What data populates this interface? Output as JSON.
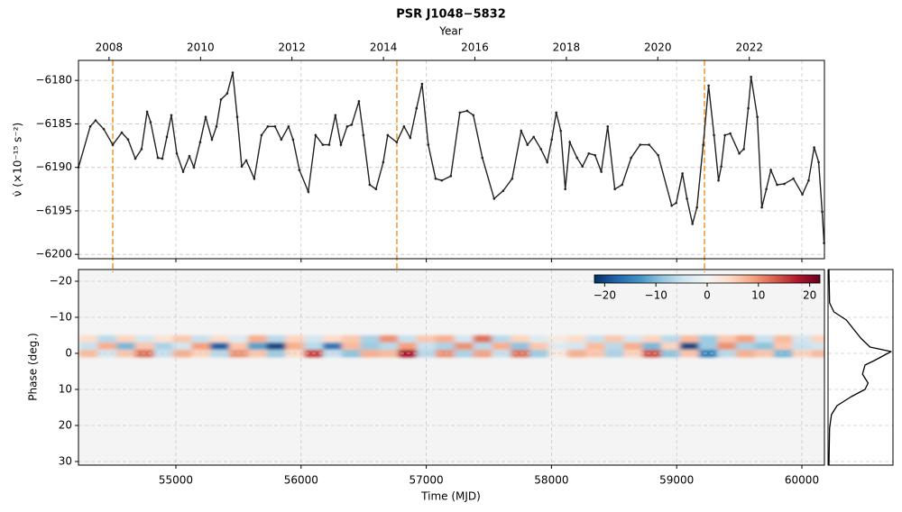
{
  "chart_data": [
    {
      "type": "line",
      "title": "PSR J1048−5832",
      "x2label": "Year",
      "ylabel": "ν̇ (×10⁻¹⁵ s⁻²)",
      "color": "#222222",
      "xlim": [
        54222,
        60180
      ],
      "ylim": [
        -6200.5,
        -6177.7
      ],
      "yticks": [
        {
          "value": -6180,
          "label": "−6180"
        },
        {
          "value": -6185,
          "label": "−6185"
        },
        {
          "value": -6190,
          "label": "−6190"
        },
        {
          "value": -6195,
          "label": "−6195"
        },
        {
          "value": -6200,
          "label": "−6200"
        }
      ],
      "x2ticks": [
        {
          "value": 54466,
          "label": "2008"
        },
        {
          "value": 55197,
          "label": "2010"
        },
        {
          "value": 55927,
          "label": "2012"
        },
        {
          "value": 56658,
          "label": "2014"
        },
        {
          "value": 57388,
          "label": "2016"
        },
        {
          "value": 58119,
          "label": "2018"
        },
        {
          "value": 58849,
          "label": "2020"
        },
        {
          "value": 59580,
          "label": "2022"
        }
      ],
      "glitches": [
        54496,
        56765,
        59222
      ],
      "glitch_color": "#f39c3a",
      "grid": true,
      "x": [
        54222,
        54316,
        54359,
        54424,
        54496,
        54568,
        54618,
        54676,
        54726,
        54770,
        54798,
        54856,
        54892,
        54928,
        54964,
        55007,
        55058,
        55108,
        55144,
        55194,
        55238,
        55288,
        55324,
        55360,
        55410,
        55454,
        55490,
        55526,
        55562,
        55626,
        55684,
        55734,
        55792,
        55842,
        55900,
        55936,
        55986,
        56058,
        56116,
        56174,
        56224,
        56274,
        56318,
        56368,
        56404,
        56462,
        56498,
        56548,
        56598,
        56656,
        56692,
        56764,
        56822,
        56872,
        56922,
        56966,
        57016,
        57074,
        57124,
        57196,
        57268,
        57326,
        57376,
        57448,
        57542,
        57614,
        57686,
        57758,
        57808,
        57858,
        57916,
        57966,
        58002,
        58038,
        58074,
        58110,
        58146,
        58204,
        58247,
        58298,
        58348,
        58398,
        58449,
        58506,
        58564,
        58636,
        58708,
        58780,
        58852,
        58960,
        58996,
        59046,
        59082,
        59126,
        59162,
        59212,
        59255,
        59298,
        59334,
        59356,
        59385,
        59428,
        59500,
        59536,
        59572,
        59594,
        59644,
        59680,
        59716,
        59752,
        59802,
        59860,
        59932,
        60004,
        60054,
        60098,
        60134,
        60162,
        60177
      ],
      "values": [
        -6190.0,
        -6185.3,
        -6184.6,
        -6185.6,
        -6187.4,
        -6186.0,
        -6186.8,
        -6189.0,
        -6187.9,
        -6183.6,
        -6184.8,
        -6188.9,
        -6189.0,
        -6186.5,
        -6184.0,
        -6188.4,
        -6190.5,
        -6188.7,
        -6190.0,
        -6187.1,
        -6184.2,
        -6186.8,
        -6185.3,
        -6182.2,
        -6181.5,
        -6179.1,
        -6184.2,
        -6189.9,
        -6189.2,
        -6191.3,
        -6186.3,
        -6185.3,
        -6185.3,
        -6186.8,
        -6185.3,
        -6186.8,
        -6190.3,
        -6192.8,
        -6186.3,
        -6187.4,
        -6187.4,
        -6184.0,
        -6187.4,
        -6185.3,
        -6185.1,
        -6182.4,
        -6186.3,
        -6192.0,
        -6192.5,
        -6189.4,
        -6186.3,
        -6187.1,
        -6185.3,
        -6186.6,
        -6183.2,
        -6180.4,
        -6187.4,
        -6191.3,
        -6191.5,
        -6191.0,
        -6183.7,
        -6183.5,
        -6184.0,
        -6188.9,
        -6193.6,
        -6192.7,
        -6191.3,
        -6185.8,
        -6187.4,
        -6186.5,
        -6187.9,
        -6189.4,
        -6186.8,
        -6183.7,
        -6185.8,
        -6192.5,
        -6187.1,
        -6188.9,
        -6189.9,
        -6188.4,
        -6188.6,
        -6190.5,
        -6185.3,
        -6192.5,
        -6192.0,
        -6188.9,
        -6187.4,
        -6187.4,
        -6188.6,
        -6194.4,
        -6194.1,
        -6190.7,
        -6193.6,
        -6196.5,
        -6194.6,
        -6187.4,
        -6180.6,
        -6186.3,
        -6191.5,
        -6189.9,
        -6186.3,
        -6186.1,
        -6188.4,
        -6187.9,
        -6183.2,
        -6179.6,
        -6184.2,
        -6194.6,
        -6192.5,
        -6190.3,
        -6192.0,
        -6191.9,
        -6191.3,
        -6193.1,
        -6191.5,
        -6187.7,
        -6189.4,
        -6195.1,
        -6198.7
      ]
    },
    {
      "type": "heatmap",
      "xlabel": "Time (MJD)",
      "ylabel": "Phase (deg.)",
      "xlim": [
        54222,
        60180
      ],
      "ylim": [
        31,
        -23.25
      ],
      "xticks": [
        55000,
        56000,
        57000,
        58000,
        59000,
        60000
      ],
      "yticks": [
        {
          "value": -20,
          "label": "−20"
        },
        {
          "value": -10,
          "label": "−10"
        },
        0,
        10,
        20,
        30
      ],
      "grid": true,
      "x": [
        54300,
        54450,
        54600,
        54750,
        54900,
        55050,
        55200,
        55350,
        55500,
        55650,
        55800,
        55950,
        56100,
        56250,
        56400,
        56550,
        56700,
        56850,
        57000,
        57150,
        57300,
        57450,
        57600,
        57750,
        57900,
        58050,
        58200,
        58350,
        58500,
        58650,
        58800,
        58950,
        59100,
        59250,
        59400,
        59550,
        59700,
        59850,
        60000,
        60150
      ],
      "y": [
        -4,
        -2,
        0
      ],
      "z": [
        [
          4,
          -6,
          5,
          -4,
          3,
          6,
          -5,
          4,
          -3,
          8,
          -6,
          5,
          -4,
          4,
          6,
          -7,
          10,
          -5,
          6,
          8,
          -4,
          12,
          -6,
          5,
          -3,
          2,
          4,
          -5,
          6,
          -4,
          5,
          -6,
          7,
          -8,
          6,
          9,
          -5,
          7,
          -4,
          5
        ],
        [
          -5,
          8,
          -10,
          6,
          -7,
          -4,
          9,
          -18,
          6,
          -12,
          -20,
          8,
          -6,
          -16,
          7,
          -8,
          -6,
          9,
          -5,
          -7,
          10,
          -6,
          8,
          -9,
          6,
          -3,
          -4,
          7,
          -6,
          8,
          -10,
          5,
          -20,
          -8,
          10,
          -7,
          -9,
          6,
          -5,
          -4
        ],
        [
          7,
          -4,
          6,
          12,
          -5,
          8,
          5,
          -6,
          10,
          6,
          -8,
          4,
          15,
          -5,
          -9,
          8,
          7,
          18,
          -6,
          10,
          -7,
          9,
          -5,
          12,
          -8,
          2,
          8,
          6,
          -7,
          5,
          14,
          -9,
          6,
          -15,
          -6,
          8,
          6,
          -10,
          5,
          7
        ]
      ],
      "colorbar": {
        "lim": [
          -22,
          22
        ],
        "ticks": [
          {
            "value": -20,
            "label": "−20"
          },
          {
            "value": -10,
            "label": "−10"
          },
          0,
          10,
          20
        ]
      },
      "colormap": [
        "#053061",
        "#2166ac",
        "#4393c3",
        "#92c5de",
        "#d1e5f0",
        "#f4f4f4",
        "#fddbc7",
        "#f4a582",
        "#d6604d",
        "#b2182b",
        "#67001f"
      ]
    },
    {
      "type": "profile",
      "color": "#000000",
      "xlim": [
        -0.015,
        1.03
      ],
      "y": [
        -23.25,
        -14,
        -11.5,
        -9.25,
        -4.25,
        -1.75,
        -0.5,
        2,
        3.25,
        5.75,
        8.25,
        10,
        12,
        14.5,
        17,
        20.75,
        31
      ],
      "values": [
        0,
        0.01,
        0.08,
        0.28,
        0.51,
        0.66,
        1.0,
        0.73,
        0.58,
        0.54,
        0.63,
        0.58,
        0.36,
        0.13,
        0.04,
        0.01,
        0
      ]
    }
  ]
}
